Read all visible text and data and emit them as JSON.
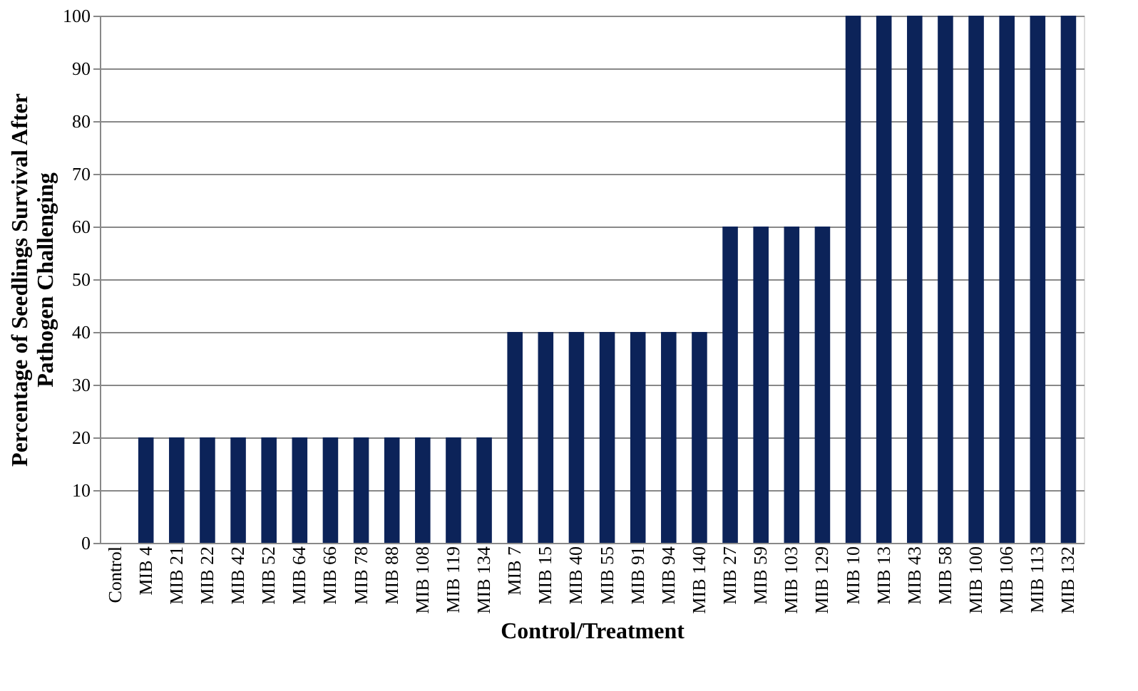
{
  "chart_data": {
    "type": "bar",
    "xlabel": "Control/Treatment",
    "ylabel": "Percentage of Seedlings Survival After\nPathogen Challenging",
    "categories": [
      "Control",
      "MIB 4",
      "MIB 21",
      "MIB 22",
      "MIB 42",
      "MIB 52",
      "MIB 64",
      "MIB 66",
      "MIB 78",
      "MIB 88",
      "MIB 108",
      "MIB 119",
      "MIB 134",
      "MIB 7",
      "MIB 15",
      "MIB 40",
      "MIB 55",
      "MIB 91",
      "MIB 94",
      "MIB 140",
      "MIB 27",
      "MIB 59",
      "MIB 103",
      "MIB 129",
      "MIB 10",
      "MIB 13",
      "MIB 43",
      "MIB 58",
      "MIB 100",
      "MIB 106",
      "MIB 113",
      "MIB 132"
    ],
    "values": [
      0,
      20,
      20,
      20,
      20,
      20,
      20,
      20,
      20,
      20,
      20,
      20,
      20,
      40,
      40,
      40,
      40,
      40,
      40,
      40,
      60,
      60,
      60,
      60,
      100,
      100,
      100,
      100,
      100,
      100,
      100,
      100
    ],
    "color": "#0c2359",
    "ylim": [
      0,
      100
    ],
    "yticks": [
      0,
      10,
      20,
      30,
      40,
      50,
      60,
      70,
      80,
      90,
      100
    ],
    "grid": "y"
  }
}
